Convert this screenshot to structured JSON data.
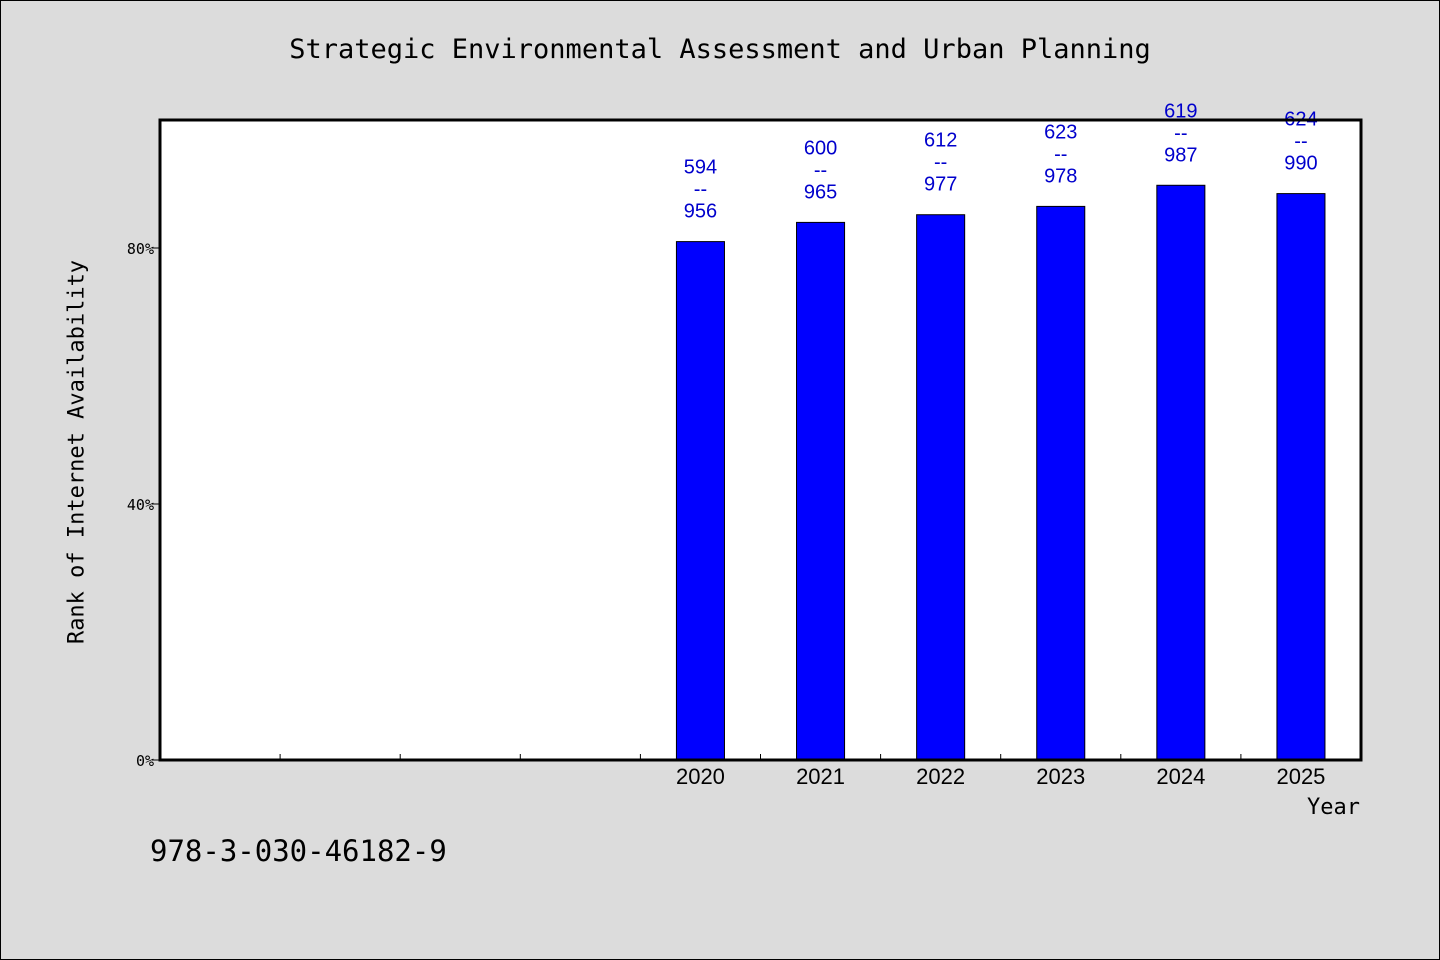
{
  "chart_data": {
    "type": "bar",
    "title": "Strategic Environmental Assessment and Urban Planning",
    "xlabel": "Year",
    "ylabel": "Rank of Internet Availability",
    "categories": [
      "",
      "",
      "",
      "",
      "2020",
      "2021",
      "2022",
      "2023",
      "2024",
      "2025"
    ],
    "values": [
      null,
      null,
      null,
      null,
      81.0,
      84.0,
      85.2,
      86.5,
      89.8,
      88.5
    ],
    "value_labels": [
      null,
      null,
      null,
      null,
      [
        "594",
        "--",
        "956"
      ],
      [
        "600",
        "--",
        "965"
      ],
      [
        "612",
        "--",
        "977"
      ],
      [
        "623",
        "--",
        "978"
      ],
      [
        "619",
        "--",
        "987"
      ],
      [
        "624",
        "--",
        "990"
      ]
    ],
    "ylim": [
      0,
      100
    ],
    "yticks": [
      {
        "value": 0,
        "label": "0%"
      },
      {
        "value": 40,
        "label": "40%"
      },
      {
        "value": 80,
        "label": "80%"
      }
    ],
    "grid": false,
    "legend": "none",
    "bar_color": "#0000ff",
    "value_label_color": "#0000cc"
  },
  "footnote": "978-3-030-46182-9",
  "colors": {
    "background": "#dcdcdc",
    "plot_background": "#ffffff"
  }
}
